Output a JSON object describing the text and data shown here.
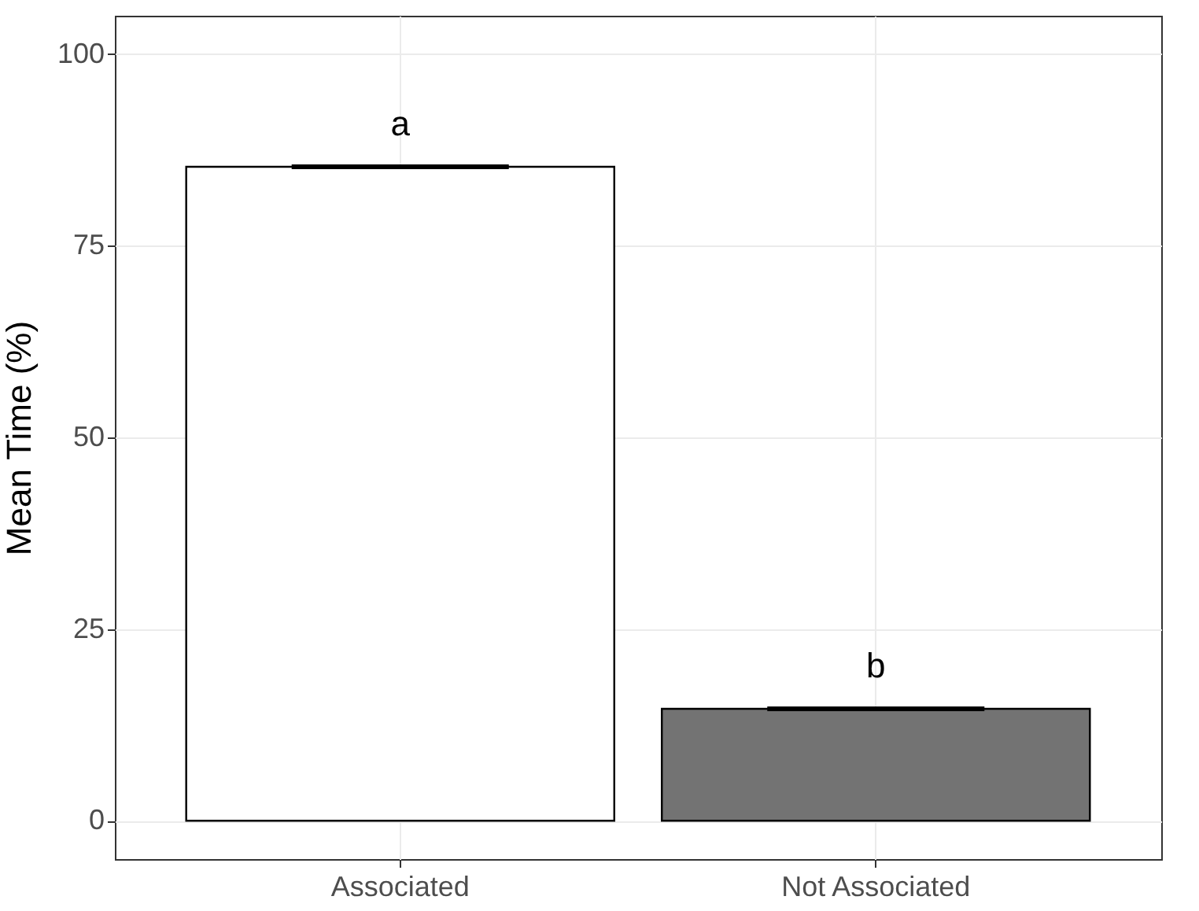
{
  "chart_data": {
    "type": "bar",
    "ylabel": "Mean Time (%)",
    "categories": [
      "Associated",
      "Not Associated"
    ],
    "values": [
      85.3,
      14.6
    ],
    "colors": [
      "#ffffff",
      "#737373"
    ],
    "errors": [
      0.2,
      0.2
    ],
    "ylim": [
      -5,
      105
    ],
    "yticks": [
      0,
      25,
      50,
      75,
      100
    ],
    "grid": true,
    "annotations": [
      "a",
      "b"
    ]
  }
}
